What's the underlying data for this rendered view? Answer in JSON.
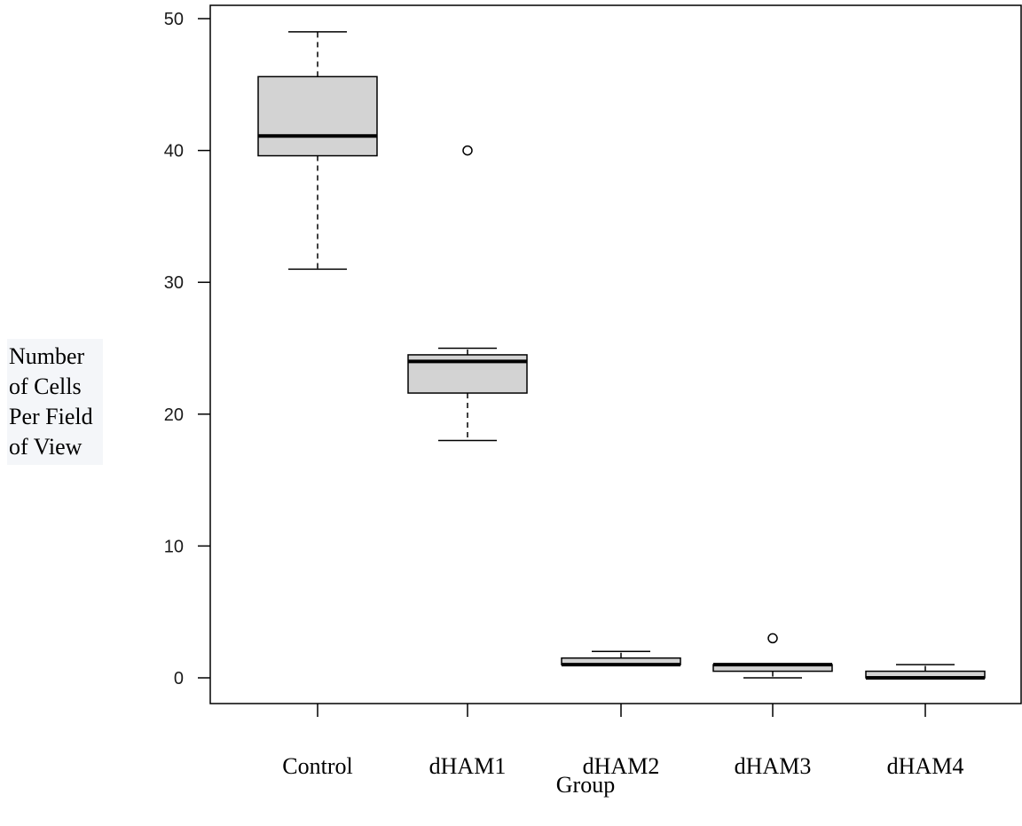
{
  "chart_data": {
    "type": "boxplot",
    "xlabel": "Group",
    "ylabel_lines": [
      "Number",
      "of Cells",
      "Per Field",
      "of View"
    ],
    "ylim": [
      -2,
      51.5
    ],
    "yticks": [
      0,
      10,
      20,
      30,
      40,
      50
    ],
    "categories": [
      "Control",
      "dHAM1",
      "dHAM2",
      "dHAM3",
      "dHAM4"
    ],
    "boxes": [
      {
        "group": "Control",
        "whisker_low": 31,
        "q1": 39.6,
        "median": 41.1,
        "q3": 45.6,
        "whisker_high": 49,
        "outliers": []
      },
      {
        "group": "dHAM1",
        "whisker_low": 18,
        "q1": 21.6,
        "median": 24,
        "q3": 24.5,
        "whisker_high": 25,
        "outliers": [
          40
        ]
      },
      {
        "group": "dHAM2",
        "whisker_low": 1,
        "q1": 1,
        "median": 1,
        "q3": 1.5,
        "whisker_high": 2,
        "outliers": []
      },
      {
        "group": "dHAM3",
        "whisker_low": 0,
        "q1": 0.5,
        "median": 1,
        "q3": 1,
        "whisker_high": 1,
        "outliers": [
          3
        ]
      },
      {
        "group": "dHAM4",
        "whisker_low": 0,
        "q1": 0,
        "median": 0,
        "q3": 0.5,
        "whisker_high": 1,
        "outliers": []
      }
    ],
    "box_fill": "#d3d3d3",
    "grid": false,
    "legend": "none"
  }
}
